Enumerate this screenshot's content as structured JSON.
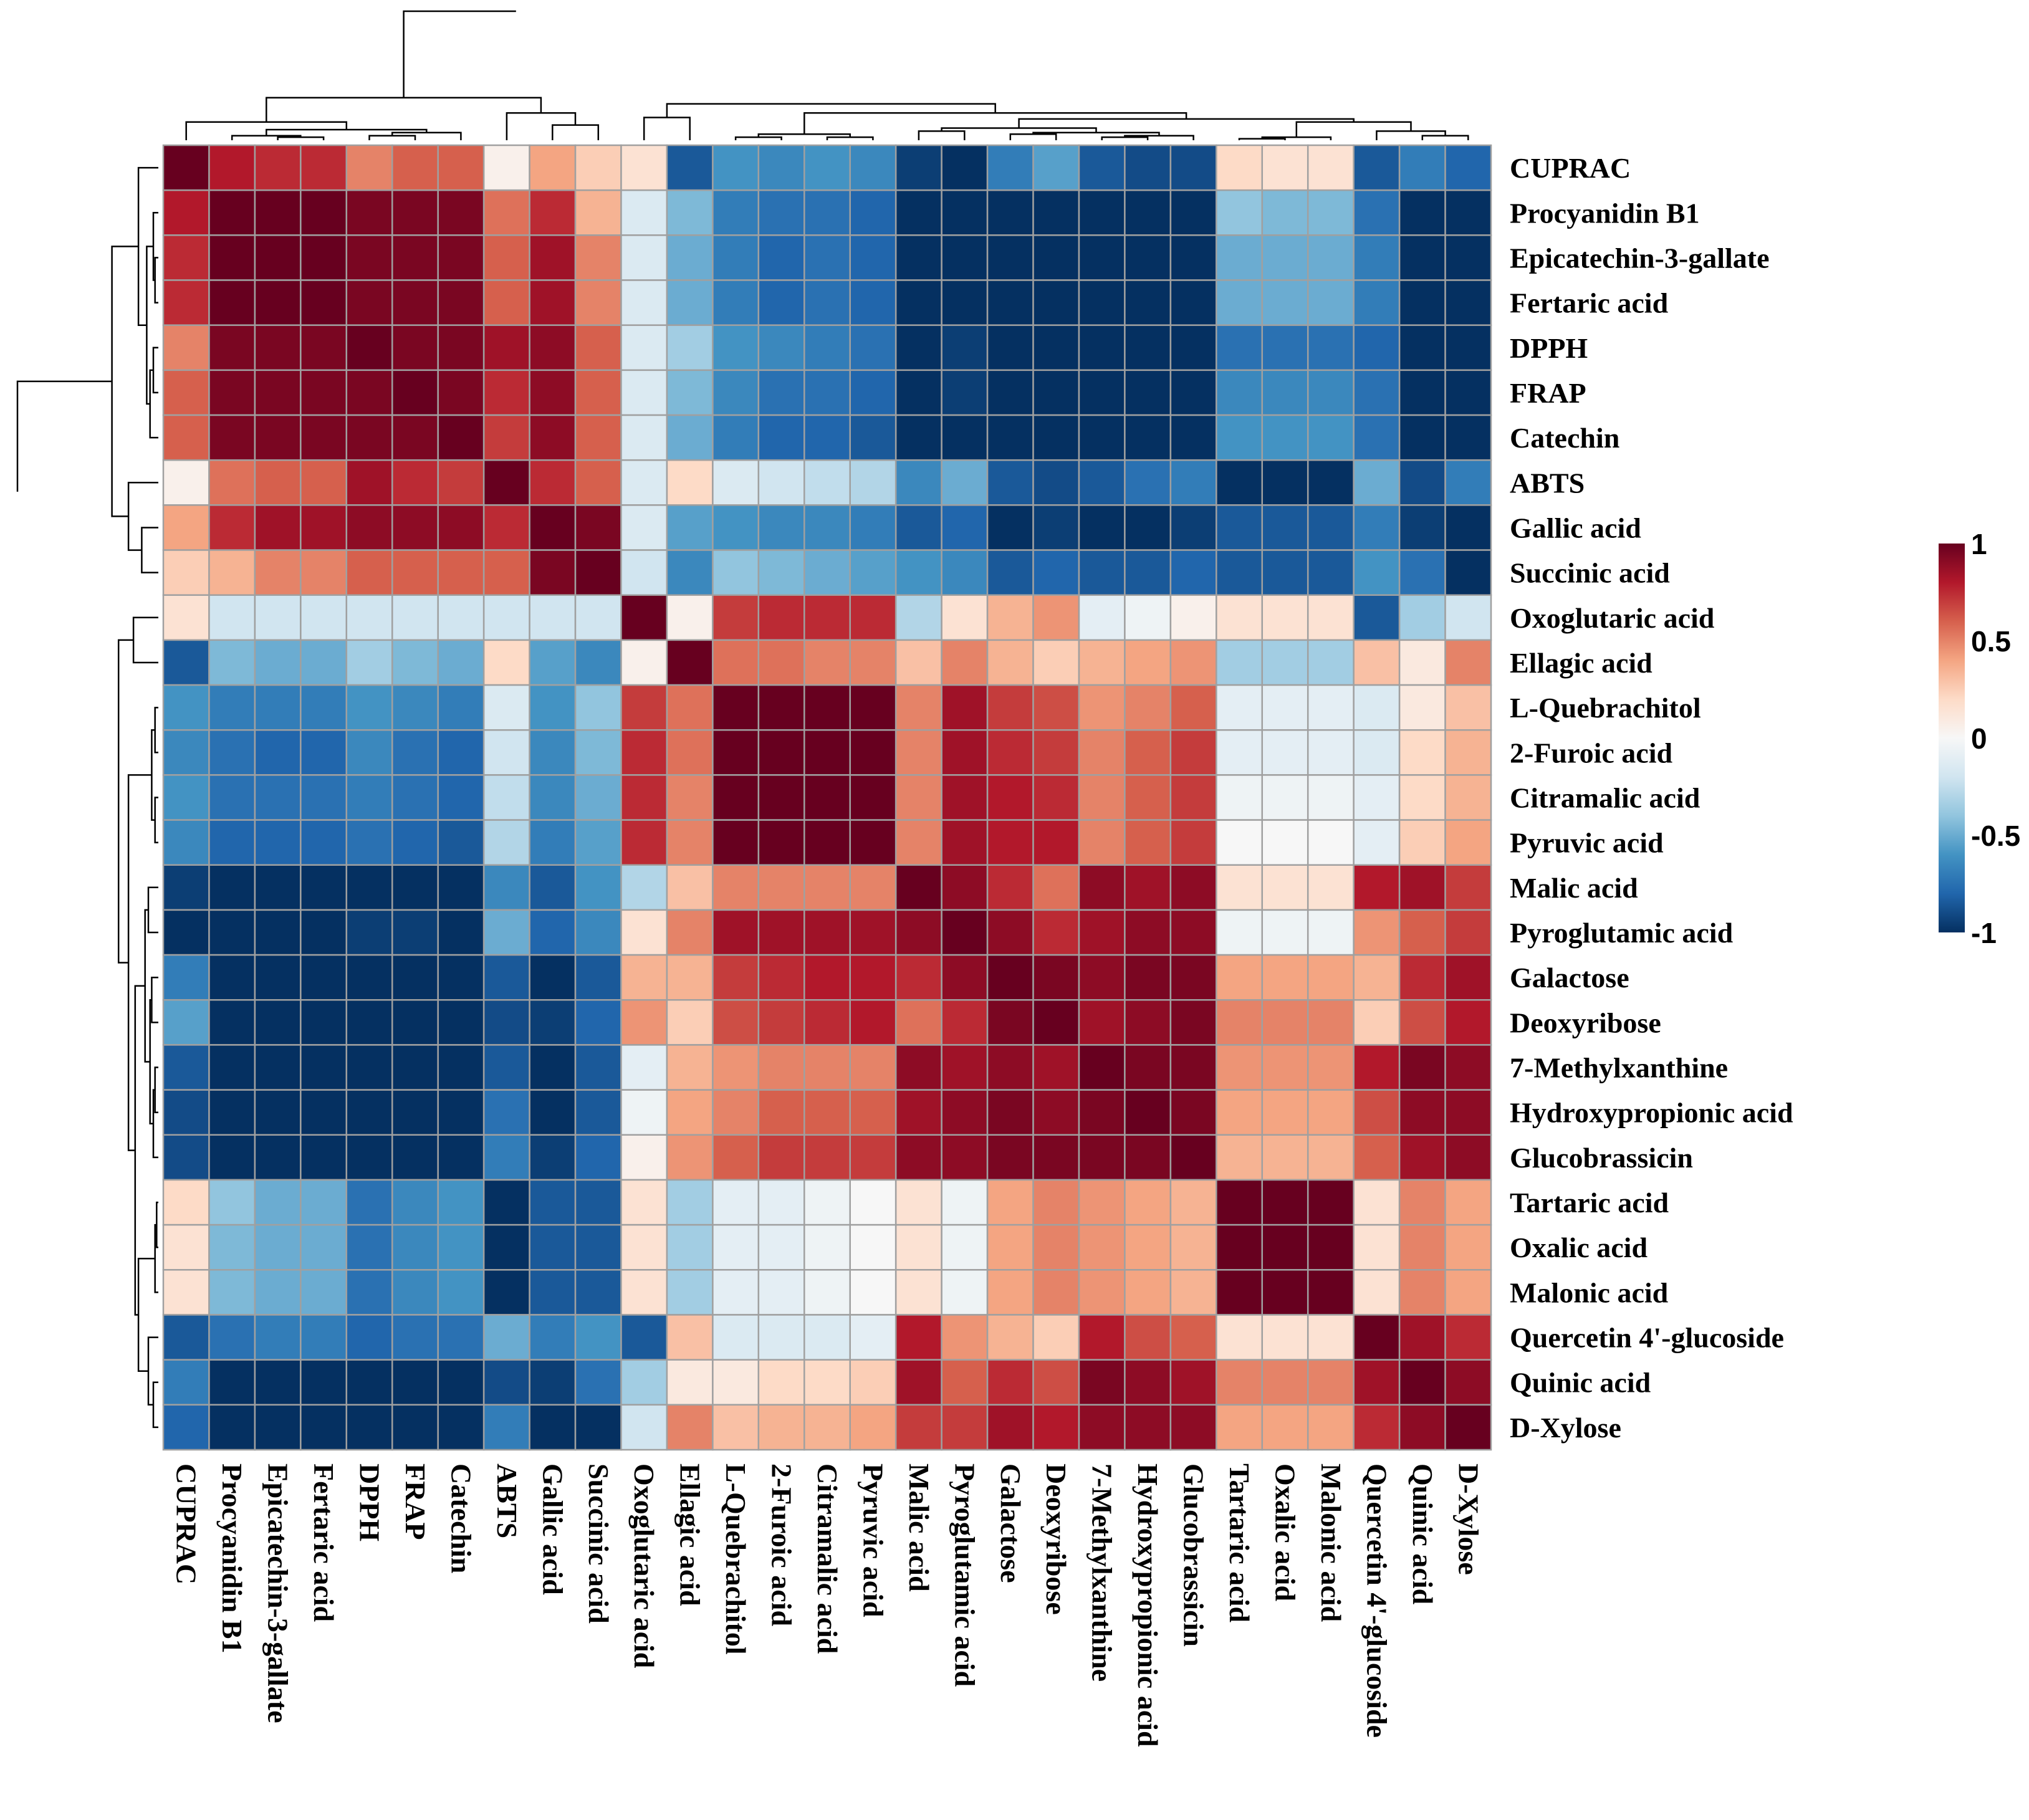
{
  "chart_data": {
    "type": "heatmap",
    "title": "",
    "variables": [
      "CUPRAC",
      "Procyanidin B1",
      "Epicatechin-3-gallate",
      "Fertaric acid",
      "DPPH",
      "FRAP",
      "Catechin",
      "ABTS",
      "Gallic acid",
      "Succinic acid",
      "Oxoglutaric acid",
      "Ellagic acid",
      "L-Quebrachitol",
      "2-Furoic acid",
      "Citramalic acid",
      "Pyruvic acid",
      "Malic acid",
      "Pyroglutamic acid",
      "Galactose",
      "Deoxyribose",
      "7-Methylxanthine",
      "Hydroxypropionic acid",
      "Glucobrassicin",
      "Tartaric acid",
      "Oxalic acid",
      "Malonic acid",
      "Quercetin 4'-glucoside",
      "Quinic acid",
      "D-Xylose"
    ],
    "col_labels": [
      "CUPRAC",
      "Procyanidin B1",
      "Epicatechin-3-gallate",
      "Fertaric acid",
      "DPPH",
      "FRAP",
      "Catechin",
      "ABTS",
      "Gallic acid",
      "Succinic acid",
      "Oxoglutaric acid",
      "Ellagic acid",
      "L-Quebrachitol",
      "2-Furoic acid",
      "Citramalic acid",
      "Pyruvic acid",
      "Malic acid",
      "Pyroglutamic acid",
      "Galactose",
      "Deoxyribose",
      "7-Methylxanthine",
      "Hydroxypropionic acid",
      "Glucobrassicin",
      "Tartaric acid",
      "Oxalic acid",
      "Malonic acid",
      "Quercetin 4'-glucoside",
      "Quinic acid",
      "D-Xylose"
    ],
    "values": [
      [
        1.0,
        0.8,
        0.75,
        0.75,
        0.5,
        0.6,
        0.6,
        0.05,
        0.4,
        0.25,
        0.15,
        -0.85,
        -0.6,
        -0.65,
        -0.6,
        -0.65,
        -0.95,
        -1.0,
        -0.7,
        -0.55,
        -0.85,
        -0.9,
        -0.9,
        0.2,
        0.15,
        0.15,
        -0.85,
        -0.7,
        -0.8
      ],
      [
        0.8,
        1.0,
        1.0,
        1.0,
        0.95,
        0.95,
        0.95,
        0.55,
        0.75,
        0.35,
        -0.15,
        -0.45,
        -0.7,
        -0.75,
        -0.75,
        -0.8,
        -1.0,
        -1.0,
        -1.0,
        -1.0,
        -1.0,
        -1.0,
        -1.0,
        -0.4,
        -0.45,
        -0.45,
        -0.75,
        -1.0,
        -1.0
      ],
      [
        0.75,
        1.0,
        1.0,
        1.0,
        0.95,
        0.95,
        0.95,
        0.6,
        0.85,
        0.5,
        -0.15,
        -0.5,
        -0.7,
        -0.8,
        -0.75,
        -0.8,
        -1.0,
        -1.0,
        -1.0,
        -1.0,
        -1.0,
        -1.0,
        -1.0,
        -0.5,
        -0.5,
        -0.5,
        -0.7,
        -1.0,
        -1.0
      ],
      [
        0.75,
        1.0,
        1.0,
        1.0,
        0.95,
        0.95,
        0.95,
        0.6,
        0.85,
        0.5,
        -0.15,
        -0.5,
        -0.7,
        -0.8,
        -0.75,
        -0.8,
        -1.0,
        -1.0,
        -1.0,
        -1.0,
        -1.0,
        -1.0,
        -1.0,
        -0.5,
        -0.5,
        -0.5,
        -0.7,
        -1.0,
        -1.0
      ],
      [
        0.5,
        0.95,
        0.95,
        0.95,
        1.0,
        0.95,
        0.95,
        0.85,
        0.9,
        0.6,
        -0.15,
        -0.35,
        -0.6,
        -0.65,
        -0.7,
        -0.75,
        -1.0,
        -0.95,
        -1.0,
        -1.0,
        -1.0,
        -1.0,
        -1.0,
        -0.75,
        -0.75,
        -0.75,
        -0.8,
        -1.0,
        -1.0
      ],
      [
        0.6,
        0.95,
        0.95,
        0.95,
        0.95,
        1.0,
        0.95,
        0.75,
        0.9,
        0.6,
        -0.15,
        -0.45,
        -0.65,
        -0.75,
        -0.75,
        -0.8,
        -1.0,
        -0.95,
        -1.0,
        -1.0,
        -1.0,
        -1.0,
        -1.0,
        -0.65,
        -0.65,
        -0.65,
        -0.75,
        -1.0,
        -1.0
      ],
      [
        0.6,
        0.95,
        0.95,
        0.95,
        0.95,
        0.95,
        1.0,
        0.7,
        0.9,
        0.6,
        -0.15,
        -0.5,
        -0.7,
        -0.8,
        -0.8,
        -0.85,
        -1.0,
        -1.0,
        -1.0,
        -1.0,
        -1.0,
        -1.0,
        -1.0,
        -0.6,
        -0.6,
        -0.6,
        -0.75,
        -1.0,
        -1.0
      ],
      [
        0.05,
        0.55,
        0.6,
        0.6,
        0.85,
        0.75,
        0.7,
        1.0,
        0.75,
        0.6,
        -0.15,
        0.2,
        -0.15,
        -0.2,
        -0.25,
        -0.3,
        -0.65,
        -0.5,
        -0.85,
        -0.9,
        -0.85,
        -0.75,
        -0.7,
        -1.0,
        -1.0,
        -1.0,
        -0.5,
        -0.9,
        -0.7
      ],
      [
        0.4,
        0.75,
        0.85,
        0.85,
        0.9,
        0.9,
        0.9,
        0.75,
        1.0,
        0.95,
        -0.15,
        -0.55,
        -0.6,
        -0.65,
        -0.65,
        -0.7,
        -0.85,
        -0.8,
        -1.0,
        -0.95,
        -1.0,
        -1.0,
        -0.95,
        -0.85,
        -0.85,
        -0.85,
        -0.7,
        -0.95,
        -1.0
      ],
      [
        0.25,
        0.35,
        0.5,
        0.5,
        0.6,
        0.6,
        0.6,
        0.6,
        0.95,
        1.0,
        -0.2,
        -0.65,
        -0.4,
        -0.45,
        -0.5,
        -0.55,
        -0.6,
        -0.65,
        -0.85,
        -0.8,
        -0.85,
        -0.85,
        -0.8,
        -0.85,
        -0.85,
        -0.85,
        -0.6,
        -0.75,
        -1.0
      ],
      [
        0.15,
        -0.2,
        -0.2,
        -0.2,
        -0.2,
        -0.2,
        -0.2,
        -0.2,
        -0.2,
        -0.2,
        1.0,
        0.05,
        0.7,
        0.75,
        0.75,
        0.75,
        -0.3,
        0.15,
        0.35,
        0.45,
        -0.1,
        -0.05,
        0.05,
        0.15,
        0.15,
        0.15,
        -0.85,
        -0.35,
        -0.2
      ],
      [
        -0.85,
        -0.45,
        -0.5,
        -0.5,
        -0.35,
        -0.45,
        -0.5,
        0.2,
        -0.55,
        -0.65,
        0.05,
        1.0,
        0.55,
        0.55,
        0.5,
        0.5,
        0.3,
        0.5,
        0.35,
        0.25,
        0.35,
        0.4,
        0.45,
        -0.35,
        -0.35,
        -0.35,
        0.3,
        0.1,
        0.5
      ],
      [
        -0.6,
        -0.7,
        -0.7,
        -0.7,
        -0.6,
        -0.65,
        -0.7,
        -0.15,
        -0.6,
        -0.4,
        0.7,
        0.55,
        1.0,
        1.0,
        1.0,
        1.0,
        0.5,
        0.85,
        0.7,
        0.65,
        0.45,
        0.5,
        0.6,
        -0.1,
        -0.1,
        -0.1,
        -0.15,
        0.1,
        0.3
      ],
      [
        -0.65,
        -0.75,
        -0.8,
        -0.8,
        -0.65,
        -0.75,
        -0.8,
        -0.2,
        -0.65,
        -0.45,
        0.75,
        0.55,
        1.0,
        1.0,
        1.0,
        1.0,
        0.5,
        0.85,
        0.75,
        0.7,
        0.5,
        0.6,
        0.7,
        -0.1,
        -0.1,
        -0.1,
        -0.15,
        0.2,
        0.35
      ],
      [
        -0.6,
        -0.75,
        -0.75,
        -0.75,
        -0.7,
        -0.75,
        -0.8,
        -0.25,
        -0.65,
        -0.5,
        0.75,
        0.5,
        1.0,
        1.0,
        1.0,
        1.0,
        0.5,
        0.85,
        0.8,
        0.75,
        0.5,
        0.6,
        0.7,
        -0.05,
        -0.05,
        -0.05,
        -0.1,
        0.2,
        0.35
      ],
      [
        -0.65,
        -0.8,
        -0.8,
        -0.8,
        -0.75,
        -0.8,
        -0.85,
        -0.3,
        -0.7,
        -0.55,
        0.75,
        0.5,
        1.0,
        1.0,
        1.0,
        1.0,
        0.5,
        0.85,
        0.8,
        0.8,
        0.5,
        0.6,
        0.7,
        0.0,
        0.0,
        0.0,
        -0.1,
        0.25,
        0.4
      ],
      [
        -0.95,
        -1.0,
        -1.0,
        -1.0,
        -1.0,
        -1.0,
        -1.0,
        -0.65,
        -0.85,
        -0.6,
        -0.3,
        0.3,
        0.5,
        0.5,
        0.5,
        0.5,
        1.0,
        0.9,
        0.75,
        0.55,
        0.9,
        0.85,
        0.9,
        0.15,
        0.15,
        0.15,
        0.8,
        0.85,
        0.7
      ],
      [
        -1.0,
        -1.0,
        -1.0,
        -1.0,
        -0.95,
        -0.95,
        -1.0,
        -0.5,
        -0.8,
        -0.65,
        0.15,
        0.5,
        0.85,
        0.85,
        0.85,
        0.85,
        0.9,
        1.0,
        0.9,
        0.75,
        0.85,
        0.9,
        0.9,
        -0.05,
        -0.05,
        -0.05,
        0.45,
        0.6,
        0.7
      ],
      [
        -0.7,
        -1.0,
        -1.0,
        -1.0,
        -1.0,
        -1.0,
        -1.0,
        -0.85,
        -1.0,
        -0.85,
        0.35,
        0.35,
        0.7,
        0.75,
        0.8,
        0.8,
        0.75,
        0.9,
        1.0,
        0.95,
        0.9,
        0.95,
        0.95,
        0.4,
        0.4,
        0.4,
        0.35,
        0.75,
        0.85
      ],
      [
        -0.55,
        -1.0,
        -1.0,
        -1.0,
        -1.0,
        -1.0,
        -1.0,
        -0.9,
        -0.95,
        -0.8,
        0.45,
        0.25,
        0.65,
        0.7,
        0.75,
        0.8,
        0.55,
        0.75,
        0.95,
        1.0,
        0.85,
        0.9,
        0.95,
        0.5,
        0.5,
        0.5,
        0.25,
        0.65,
        0.8
      ],
      [
        -0.85,
        -1.0,
        -1.0,
        -1.0,
        -1.0,
        -1.0,
        -1.0,
        -0.85,
        -1.0,
        -0.85,
        -0.1,
        0.35,
        0.45,
        0.5,
        0.5,
        0.5,
        0.9,
        0.85,
        0.9,
        0.85,
        1.0,
        0.95,
        0.95,
        0.45,
        0.45,
        0.45,
        0.8,
        0.95,
        0.9
      ],
      [
        -0.9,
        -1.0,
        -1.0,
        -1.0,
        -1.0,
        -1.0,
        -1.0,
        -0.75,
        -1.0,
        -0.85,
        -0.05,
        0.4,
        0.5,
        0.6,
        0.6,
        0.6,
        0.85,
        0.9,
        0.95,
        0.9,
        0.95,
        1.0,
        0.95,
        0.4,
        0.4,
        0.4,
        0.65,
        0.9,
        0.9
      ],
      [
        -0.9,
        -1.0,
        -1.0,
        -1.0,
        -1.0,
        -1.0,
        -1.0,
        -0.7,
        -0.95,
        -0.8,
        0.05,
        0.45,
        0.6,
        0.7,
        0.7,
        0.7,
        0.9,
        0.9,
        0.95,
        0.95,
        0.95,
        0.95,
        1.0,
        0.35,
        0.35,
        0.35,
        0.6,
        0.85,
        0.9
      ],
      [
        0.2,
        -0.4,
        -0.5,
        -0.5,
        -0.75,
        -0.65,
        -0.6,
        -1.0,
        -0.85,
        -0.85,
        0.15,
        -0.35,
        -0.1,
        -0.1,
        -0.05,
        0.0,
        0.15,
        -0.05,
        0.4,
        0.5,
        0.45,
        0.4,
        0.35,
        1.0,
        1.0,
        1.0,
        0.15,
        0.5,
        0.4
      ],
      [
        0.15,
        -0.45,
        -0.5,
        -0.5,
        -0.75,
        -0.65,
        -0.6,
        -1.0,
        -0.85,
        -0.85,
        0.15,
        -0.35,
        -0.1,
        -0.1,
        -0.05,
        0.0,
        0.15,
        -0.05,
        0.4,
        0.5,
        0.45,
        0.4,
        0.35,
        1.0,
        1.0,
        1.0,
        0.15,
        0.5,
        0.4
      ],
      [
        0.15,
        -0.45,
        -0.5,
        -0.5,
        -0.75,
        -0.65,
        -0.6,
        -1.0,
        -0.85,
        -0.85,
        0.15,
        -0.35,
        -0.1,
        -0.1,
        -0.05,
        0.0,
        0.15,
        -0.05,
        0.4,
        0.5,
        0.45,
        0.4,
        0.35,
        1.0,
        1.0,
        1.0,
        0.15,
        0.5,
        0.4
      ],
      [
        -0.85,
        -0.75,
        -0.7,
        -0.7,
        -0.8,
        -0.75,
        -0.75,
        -0.5,
        -0.7,
        -0.6,
        -0.85,
        0.3,
        -0.15,
        -0.15,
        -0.15,
        -0.1,
        0.8,
        0.45,
        0.35,
        0.25,
        0.8,
        0.65,
        0.6,
        0.15,
        0.15,
        0.15,
        1.0,
        0.85,
        0.75
      ],
      [
        -0.7,
        -1.0,
        -1.0,
        -1.0,
        -1.0,
        -1.0,
        -1.0,
        -0.9,
        -0.95,
        -0.75,
        -0.35,
        0.1,
        0.1,
        0.2,
        0.2,
        0.25,
        0.85,
        0.6,
        0.75,
        0.65,
        0.95,
        0.9,
        0.85,
        0.5,
        0.5,
        0.5,
        0.85,
        1.0,
        0.9
      ],
      [
        -0.8,
        -1.0,
        -1.0,
        -1.0,
        -1.0,
        -1.0,
        -1.0,
        -0.7,
        -1.0,
        -1.0,
        -0.2,
        0.5,
        0.3,
        0.35,
        0.35,
        0.4,
        0.7,
        0.7,
        0.85,
        0.8,
        0.9,
        0.9,
        0.9,
        0.4,
        0.4,
        0.4,
        0.75,
        0.9,
        1.0
      ]
    ],
    "color_scale": {
      "range": [
        -1,
        1
      ],
      "ticks": [
        1,
        0.5,
        0,
        -0.5,
        -1
      ],
      "tick_labels": [
        "1",
        "0.5",
        "0",
        "-0.5",
        "-1"
      ],
      "colors": [
        "#053061",
        "#2166ac",
        "#4393c3",
        "#92c5de",
        "#d1e5f0",
        "#f7f7f7",
        "#fddbc7",
        "#f4a582",
        "#d6604d",
        "#b2182b",
        "#67001f"
      ]
    },
    "legend": "right",
    "row_dendrogram": true,
    "col_dendrogram": true,
    "grid_color": "#a0a0a0"
  }
}
